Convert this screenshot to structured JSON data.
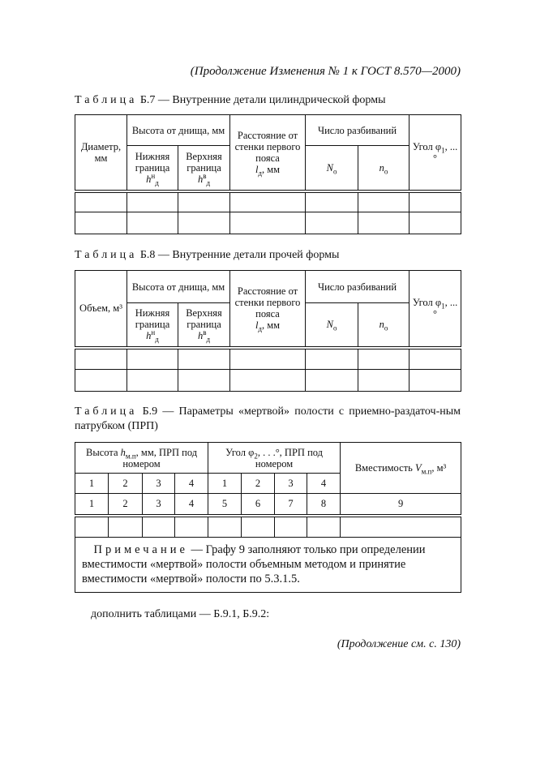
{
  "running_header": "(Продолжение Изменения № 1 к ГОСТ 8.570—2000)",
  "table_b7": {
    "caption_label": "Таблица",
    "caption_text": "Б.7 — Внутренние детали цилиндрической формы",
    "col_first": "Диаметр, мм",
    "height_group": "Высота от днища, мм",
    "lower": "Нижняя граница",
    "upper": "Верхняя граница",
    "h_symbol": "h",
    "lower_sup": "н",
    "upper_sup": "в",
    "d_sub": "д",
    "distance": "Расстояние от стенки первого пояса",
    "l_symbol": "l",
    "distance_unit": ", мм",
    "splits_group": "Число разбиваний",
    "N_symbol": "N",
    "n_symbol": "n",
    "o_sub": "о",
    "angle": "Угол φ",
    "angle_sub": "1",
    "angle_suffix": ", ...°"
  },
  "table_b8": {
    "caption_label": "Таблица",
    "caption_text": "Б.8 — Внутренние детали прочей формы",
    "col_first": "Объем, м³",
    "height_group": "Высота от днища, мм",
    "lower": "Нижняя граница",
    "upper": "Верхняя граница",
    "h_symbol": "h",
    "lower_sup": "н",
    "upper_sup": "в",
    "d_sub": "д",
    "distance": "Расстояние от стенки первого пояса",
    "l_symbol": "l",
    "distance_unit": ", мм",
    "splits_group": "Число разбиваний",
    "N_symbol": "N",
    "n_symbol": "n",
    "o_sub": "о",
    "angle": "Угол φ",
    "angle_sub": "1",
    "angle_suffix": ", ...°"
  },
  "table_b9": {
    "caption_label": "Таблица",
    "caption_text": "Б.9 — Параметры «мертвой» полости с приемно-раздаточ-ным патрубком (ПРП)",
    "height_pre": "Высота ",
    "height_sym": "h",
    "height_sub": "м.п",
    "height_post": ", мм, ПРП под номером",
    "angle_pre": "Угол φ",
    "angle_sub": "2",
    "angle_post": ", . . .°, ПРП под номером",
    "capacity_pre": "Вместимость ",
    "capacity_sym": "V",
    "capacity_sub": "м.п",
    "capacity_post": ", м³",
    "sub_numbers": [
      "1",
      "2",
      "3",
      "4",
      "1",
      "2",
      "3",
      "4"
    ],
    "column_numbers": [
      "1",
      "2",
      "3",
      "4",
      "5",
      "6",
      "7",
      "8",
      "9"
    ],
    "note_label": "Примечание",
    "note_text": " — Графу 9 заполняют только при определении вместимости «мертвой» полости объемным методом и принятие вместимости «мертвой» полости по 5.3.1.5."
  },
  "body_text": "дополнить таблицами — Б.9.1, Б.9.2:",
  "footer": "(Продолжение см. с. 130)"
}
